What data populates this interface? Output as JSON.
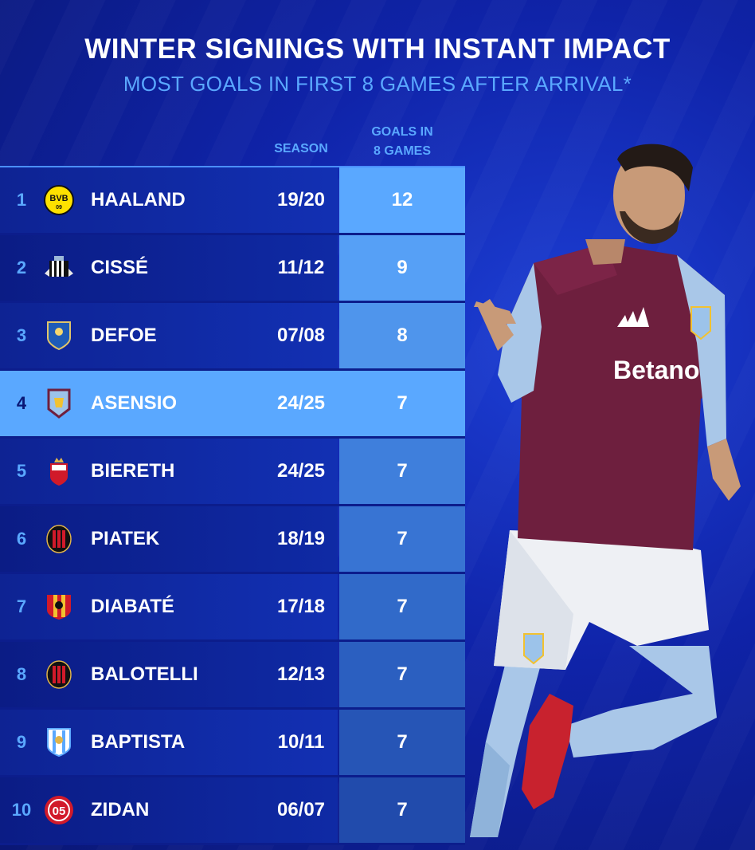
{
  "title": "WINTER SIGNINGS WITH INSTANT IMPACT",
  "subtitle": "MOST GOALS IN FIRST 8 GAMES AFTER ARRIVAL*",
  "headers": {
    "season": "SEASON",
    "goals_line1": "GOALS IN",
    "goals_line2": "8 GAMES"
  },
  "rows": [
    {
      "rank": "1",
      "name": "HAALAND",
      "season": "19/20",
      "goals": "12",
      "badge": "dortmund-badge-icon",
      "goals_color": "#5aa8ff"
    },
    {
      "rank": "2",
      "name": "CISSÉ",
      "season": "11/12",
      "goals": "9",
      "badge": "newcastle-badge-icon",
      "goals_color": "#56a0f6"
    },
    {
      "rank": "3",
      "name": "DEFOE",
      "season": "07/08",
      "goals": "8",
      "badge": "portsmouth-badge-icon",
      "goals_color": "#4f95ec"
    },
    {
      "rank": "4",
      "name": "ASENSIO",
      "season": "24/25",
      "goals": "7",
      "badge": "aston-villa-badge-icon",
      "goals_color": "#5aa8ff"
    },
    {
      "rank": "5",
      "name": "BIERETH",
      "season": "24/25",
      "goals": "7",
      "badge": "monaco-badge-icon",
      "goals_color": "#3f7fdc"
    },
    {
      "rank": "6",
      "name": "PIATEK",
      "season": "18/19",
      "goals": "7",
      "badge": "ac-milan-badge-icon",
      "goals_color": "#3874d3"
    },
    {
      "rank": "7",
      "name": "DIABATÉ",
      "season": "17/18",
      "goals": "7",
      "badge": "benevento-badge-icon",
      "goals_color": "#316ac9"
    },
    {
      "rank": "8",
      "name": "BALOTELLI",
      "season": "12/13",
      "goals": "7",
      "badge": "ac-milan-badge-icon",
      "goals_color": "#2b5fc0"
    },
    {
      "rank": "9",
      "name": "BAPTISTA",
      "season": "10/11",
      "goals": "7",
      "badge": "malaga-badge-icon",
      "goals_color": "#2655b6"
    },
    {
      "rank": "10",
      "name": "ZIDAN",
      "season": "06/07",
      "goals": "7",
      "badge": "mainz-badge-icon",
      "goals_color": "#214bac"
    }
  ],
  "player": {
    "sponsor": "Betano"
  }
}
